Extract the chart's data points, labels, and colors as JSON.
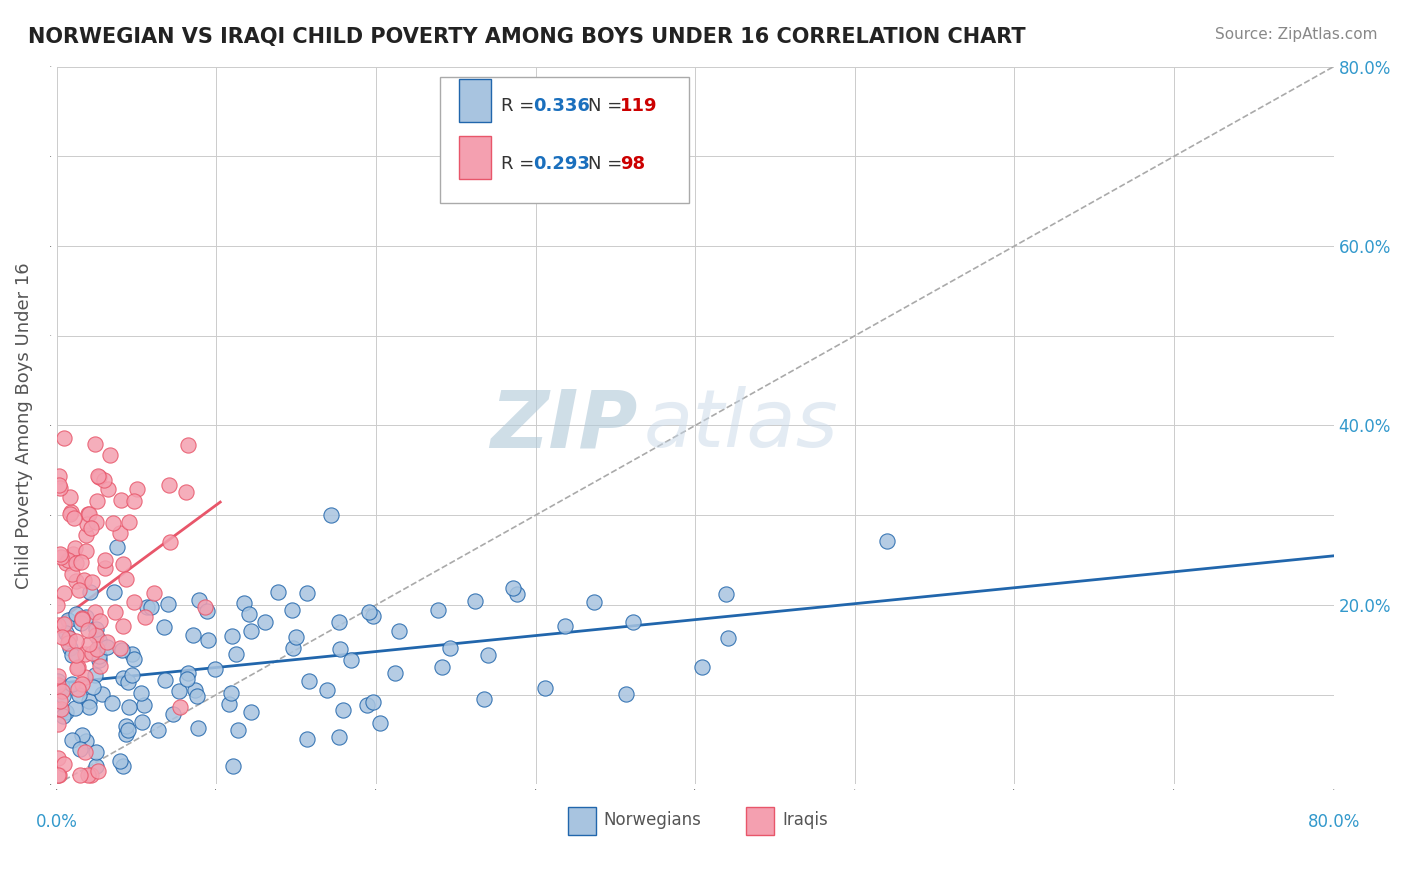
{
  "title": "NORWEGIAN VS IRAQI CHILD POVERTY AMONG BOYS UNDER 16 CORRELATION CHART",
  "source": "Source: ZipAtlas.com",
  "ylabel": "Child Poverty Among Boys Under 16",
  "xlim": [
    0,
    0.8
  ],
  "ylim": [
    0,
    0.8
  ],
  "xticks": [
    0.0,
    0.1,
    0.2,
    0.3,
    0.4,
    0.5,
    0.6,
    0.7,
    0.8
  ],
  "yticks": [
    0.0,
    0.1,
    0.2,
    0.3,
    0.4,
    0.5,
    0.6,
    0.7,
    0.8
  ],
  "right_ytick_labels": [
    "20.0%",
    "40.0%",
    "60.0%",
    "80.0%"
  ],
  "right_ytick_positions": [
    0.2,
    0.4,
    0.6,
    0.8
  ],
  "norwegian_R": 0.336,
  "norwegian_N": 119,
  "iraqi_R": 0.293,
  "iraqi_N": 98,
  "norwegian_color": "#a8c4e0",
  "iraqi_color": "#f4a0b0",
  "norwegian_line_color": "#2166ac",
  "iraqi_line_color": "#e8566a",
  "watermark_zip": "ZIP",
  "watermark_atlas": "atlas",
  "background_color": "#ffffff",
  "grid_color": "#cccccc",
  "title_color": "#222222",
  "legend_R_color": "#1a6fbd",
  "legend_N_color": "#cc0000",
  "seed": 42
}
